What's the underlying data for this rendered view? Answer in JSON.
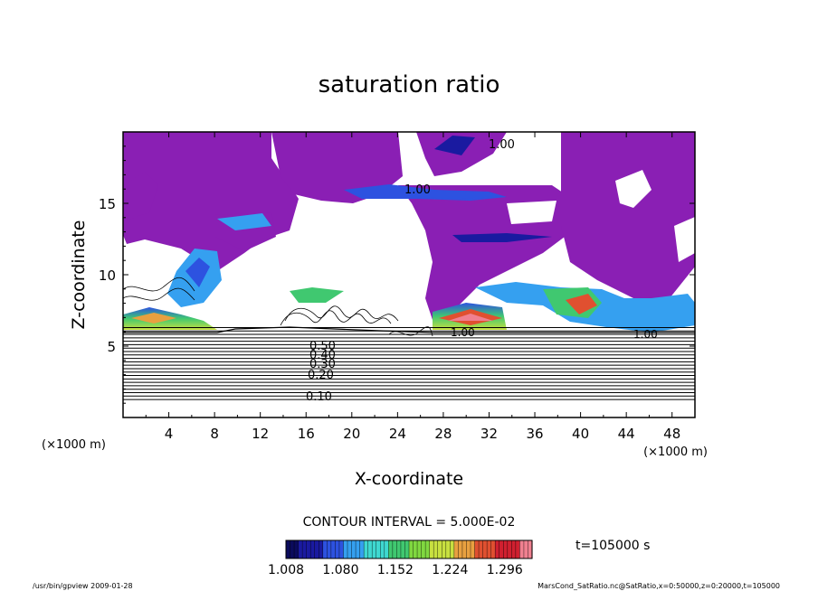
{
  "chart_data": {
    "type": "heatmap",
    "title": "saturation ratio",
    "xlabel": "X-coordinate",
    "ylabel": "Z-coordinate",
    "x_unit": "(×1000 m)",
    "z_unit": "(×1000 m)",
    "xlim": [
      0,
      50
    ],
    "zlim": [
      0,
      20
    ],
    "x_ticks": [
      "4",
      "8",
      "12",
      "16",
      "20",
      "24",
      "28",
      "32",
      "36",
      "40",
      "44",
      "48"
    ],
    "z_ticks": [
      "5",
      "10",
      "15"
    ],
    "contour_interval_text": "CONTOUR INTERVAL = 5.000E-02",
    "contour_labels": [
      "0.10",
      "0.20",
      "0.30",
      "0.40",
      "0.50",
      "1.00"
    ],
    "time_text": "t=105000 s",
    "colorbar": {
      "min": 1.008,
      "max": 1.332,
      "tick_labels": [
        "1.008",
        "1.080",
        "1.152",
        "1.224",
        "1.296"
      ],
      "colors": [
        "#0b0b5c",
        "#1a1aa0",
        "#2d52e0",
        "#35a0f0",
        "#3fd8d0",
        "#40c870",
        "#80d840",
        "#c8e040",
        "#e8a040",
        "#e05030",
        "#d02030",
        "#f08090"
      ]
    },
    "saturated_fill_color": "#8a1fb4",
    "footer_left": "/usr/bin/gpview   2009-01-28",
    "footer_right": "MarsCond_SatRatio.nc@SatRatio,x=0:50000,z=0:20000,t=105000"
  }
}
